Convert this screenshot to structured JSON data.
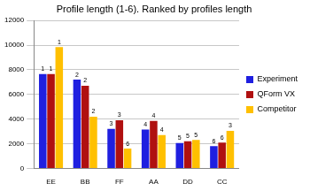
{
  "chart_data": {
    "type": "bar",
    "title": "Profile length (1-6). Ranked by profiles length",
    "categories": [
      "EE",
      "BB",
      "FF",
      "AA",
      "DD",
      "CC"
    ],
    "series": [
      {
        "name": "Experiment",
        "color": "#1f1fe0",
        "values": [
          7650,
          7200,
          3200,
          3150,
          2050,
          1800
        ],
        "ranks": [
          1,
          2,
          3,
          4,
          5,
          6
        ]
      },
      {
        "name": "QForm VX",
        "color": "#b01010",
        "values": [
          7650,
          6700,
          3900,
          3850,
          2200,
          2100
        ],
        "ranks": [
          1,
          2,
          3,
          4,
          5,
          6
        ]
      },
      {
        "name": "Competitor",
        "color": "#ffc000",
        "values": [
          9850,
          4200,
          1600,
          2700,
          2300,
          3050
        ],
        "ranks": [
          1,
          2,
          6,
          4,
          5,
          3
        ]
      }
    ],
    "ylim": [
      0,
      12000
    ],
    "yticks": [
      0,
      2000,
      4000,
      6000,
      8000,
      10000,
      12000
    ],
    "grid": true,
    "legend": "right"
  }
}
